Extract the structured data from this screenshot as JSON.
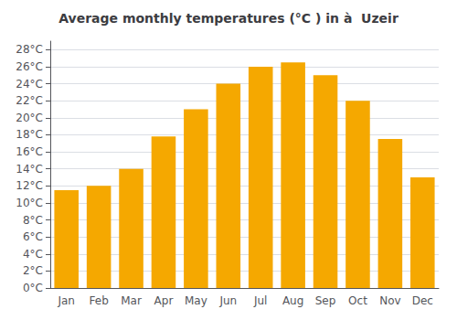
{
  "chart_data": {
    "type": "bar",
    "title": "Average monthly temperatures (°C ) in à  Uzeir",
    "categories": [
      "Jan",
      "Feb",
      "Mar",
      "Apr",
      "May",
      "Jun",
      "Jul",
      "Aug",
      "Sep",
      "Oct",
      "Nov",
      "Dec"
    ],
    "values": [
      11.5,
      12.0,
      14.0,
      17.8,
      21.0,
      24.0,
      26.0,
      26.5,
      25.0,
      22.0,
      17.5,
      13.0
    ],
    "color": "#F5A800",
    "ylim": [
      0,
      29
    ],
    "yticks": [
      {
        "value": 0,
        "label": "0°C"
      },
      {
        "value": 2,
        "label": "2°C"
      },
      {
        "value": 4,
        "label": "4°C"
      },
      {
        "value": 6,
        "label": "6°C"
      },
      {
        "value": 8,
        "label": "8°C"
      },
      {
        "value": 10,
        "label": "10°C"
      },
      {
        "value": 12,
        "label": "12°C"
      },
      {
        "value": 14,
        "label": "14°C"
      },
      {
        "value": 16,
        "label": "16°C"
      },
      {
        "value": 18,
        "label": "18°C"
      },
      {
        "value": 20,
        "label": "20°C"
      },
      {
        "value": 22,
        "label": "22°C"
      },
      {
        "value": 24,
        "label": "24°C"
      },
      {
        "value": 26,
        "label": "26°C"
      },
      {
        "value": 28,
        "label": "28°C"
      }
    ],
    "grid": true
  }
}
